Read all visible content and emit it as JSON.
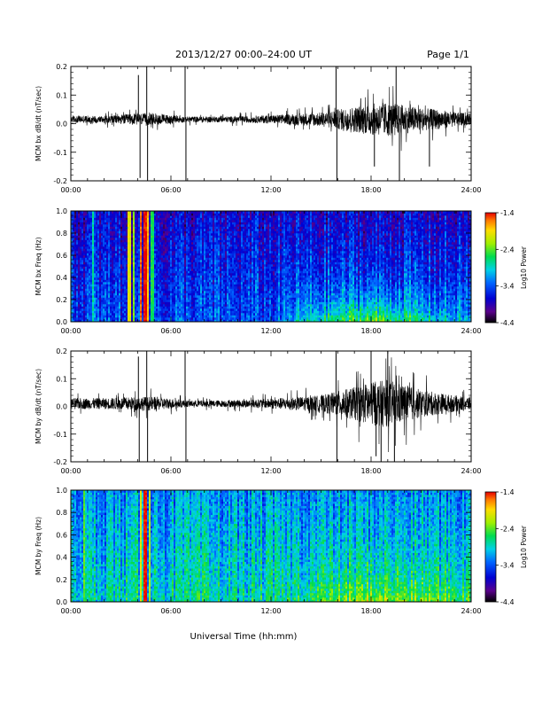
{
  "header": {
    "title": "2013/12/27  00:00–24:00 UT",
    "page": "Page 1/1"
  },
  "xlabel": "Universal Time (hh:mm)",
  "chart_data": [
    {
      "type": "line",
      "ylabel": "MCM bx dB/dt (nT/sec)",
      "xlim": [
        0,
        24
      ],
      "ylim": [
        -0.2,
        0.2
      ],
      "x_ticks": [
        "00:00",
        "06:00",
        "12:00",
        "18:00",
        "24:00"
      ],
      "y_ticks": [
        "-0.2",
        "-0.1",
        "0.0",
        "0.1",
        "0.2"
      ],
      "envelope": {
        "hours": [
          0,
          2,
          4,
          5,
          7,
          9,
          11,
          13,
          15,
          16,
          17,
          18,
          19,
          20,
          21,
          22,
          23,
          24
        ],
        "amplitude": [
          0.013,
          0.013,
          0.02,
          0.02,
          0.01,
          0.01,
          0.012,
          0.018,
          0.025,
          0.035,
          0.045,
          0.055,
          0.06,
          0.05,
          0.04,
          0.035,
          0.025,
          0.02
        ]
      },
      "baseline": 0.015,
      "spikes": [
        {
          "hour": 4.05,
          "value": 0.17
        },
        {
          "hour": 4.15,
          "value": -0.19
        },
        {
          "hour": 4.55,
          "value": 0.2
        },
        {
          "hour": 4.6,
          "value": -0.2
        },
        {
          "hour": 6.85,
          "value": 0.2
        },
        {
          "hour": 6.9,
          "value": -0.2
        },
        {
          "hour": 15.9,
          "value": 0.2
        },
        {
          "hour": 15.95,
          "value": -0.2
        },
        {
          "hour": 18.2,
          "value": -0.15
        },
        {
          "hour": 19.5,
          "value": 0.2
        },
        {
          "hour": 19.7,
          "value": -0.2
        },
        {
          "hour": 21.5,
          "value": -0.15
        }
      ]
    },
    {
      "type": "heatmap",
      "ylabel": "MCM bx Freq (Hz)",
      "colorbar_label": "Log10 Power",
      "xlim": [
        0,
        24
      ],
      "ylim": [
        0,
        1
      ],
      "x_ticks": [
        "00:00",
        "06:00",
        "12:00",
        "18:00",
        "24:00"
      ],
      "y_ticks": [
        "0.0",
        "0.2",
        "0.4",
        "0.6",
        "0.8",
        "1.0"
      ],
      "color_range": [
        -4.4,
        -1.4
      ],
      "colorbar_ticks": [
        "-1.4",
        "-2.4",
        "-3.4",
        "-4.4"
      ],
      "base_level": -3.45,
      "low_freq_enhancement": {
        "hours": [
          0,
          12,
          14,
          16,
          18,
          20,
          22,
          24
        ],
        "level": [
          0,
          0,
          0.5,
          0.8,
          1.0,
          0.8,
          0.5,
          0.3
        ]
      },
      "bright_columns": [
        {
          "hour": 3.5,
          "level": -2.0
        },
        {
          "hour": 3.8,
          "level": -2.3
        },
        {
          "hour": 4.2,
          "level": -1.6
        },
        {
          "hour": 4.45,
          "level": -1.4
        },
        {
          "hour": 4.6,
          "level": -1.8
        },
        {
          "hour": 1.3,
          "level": -2.8
        },
        {
          "hour": 4.9,
          "level": -2.6
        }
      ]
    },
    {
      "type": "line",
      "ylabel": "MCM by dB/dt (nT/sec)",
      "xlim": [
        0,
        24
      ],
      "ylim": [
        -0.2,
        0.2
      ],
      "x_ticks": [
        "00:00",
        "06:00",
        "12:00",
        "18:00",
        "24:00"
      ],
      "y_ticks": [
        "-0.2",
        "-0.1",
        "0.0",
        "0.1",
        "0.2"
      ],
      "envelope": {
        "hours": [
          0,
          2,
          4,
          5,
          7,
          9,
          11,
          13,
          15,
          16,
          17,
          18,
          19,
          20,
          21,
          22,
          23,
          24
        ],
        "amplitude": [
          0.02,
          0.02,
          0.025,
          0.025,
          0.012,
          0.012,
          0.015,
          0.022,
          0.03,
          0.045,
          0.06,
          0.08,
          0.085,
          0.07,
          0.05,
          0.04,
          0.03,
          0.025
        ]
      },
      "baseline": 0.01,
      "spikes": [
        {
          "hour": 4.05,
          "value": 0.18
        },
        {
          "hour": 4.1,
          "value": -0.2
        },
        {
          "hour": 4.55,
          "value": 0.2
        },
        {
          "hour": 4.6,
          "value": -0.2
        },
        {
          "hour": 6.85,
          "value": 0.2
        },
        {
          "hour": 6.9,
          "value": -0.2
        },
        {
          "hour": 15.9,
          "value": 0.2
        },
        {
          "hour": 15.95,
          "value": -0.2
        },
        {
          "hour": 18.0,
          "value": 0.2
        },
        {
          "hour": 18.3,
          "value": -0.18
        },
        {
          "hour": 19.0,
          "value": 0.2
        },
        {
          "hour": 19.4,
          "value": -0.2
        },
        {
          "hour": 18.6,
          "value": -0.2
        }
      ]
    },
    {
      "type": "heatmap",
      "ylabel": "MCM by Freq (Hz)",
      "colorbar_label": "Log10 Power",
      "xlim": [
        0,
        24
      ],
      "ylim": [
        0,
        1
      ],
      "x_ticks": [
        "00:00",
        "06:00",
        "12:00",
        "18:00",
        "24:00"
      ],
      "y_ticks": [
        "0.0",
        "0.2",
        "0.4",
        "0.6",
        "0.8",
        "1.0"
      ],
      "color_range": [
        -4.4,
        -1.4
      ],
      "colorbar_ticks": [
        "-1.4",
        "-2.4",
        "-3.4",
        "-4.4"
      ],
      "base_level": -2.85,
      "low_freq_enhancement": {
        "hours": [
          0,
          12,
          14,
          16,
          18,
          20,
          22,
          24
        ],
        "level": [
          0,
          0,
          0.2,
          0.4,
          0.6,
          0.5,
          0.4,
          0.3
        ]
      },
      "bright_columns": [
        {
          "hour": 4.45,
          "level": -1.4
        },
        {
          "hour": 4.2,
          "level": -2.0
        },
        {
          "hour": 0.8,
          "level": -2.4
        },
        {
          "hour": 4.7,
          "level": -2.2
        }
      ]
    }
  ]
}
